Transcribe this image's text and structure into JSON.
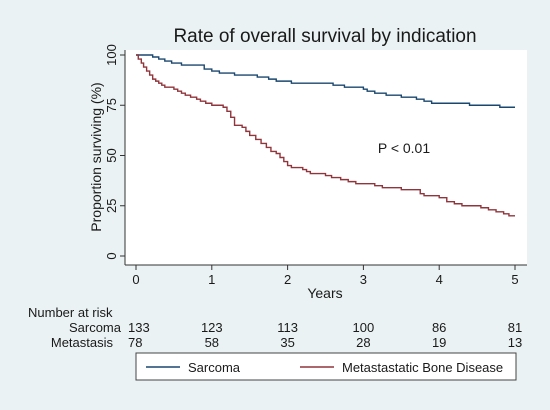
{
  "chart_data": {
    "type": "line",
    "step": true,
    "title": "Rate of overall survival by indication",
    "xlabel": "Years",
    "ylabel": "Proportion surviving (%)",
    "xlim": [
      0,
      5
    ],
    "ylim": [
      0,
      100
    ],
    "x_ticks": [
      0,
      1,
      2,
      3,
      4,
      5
    ],
    "y_ticks": [
      0,
      25,
      50,
      75,
      100
    ],
    "grid": false,
    "legend_position": "bottom",
    "annotation": "P < 0.01",
    "series": [
      {
        "name": "Sarcoma",
        "color": "#1a476f",
        "points": [
          [
            0,
            100
          ],
          [
            0.22,
            99
          ],
          [
            0.3,
            98
          ],
          [
            0.38,
            97
          ],
          [
            0.47,
            96
          ],
          [
            0.6,
            95
          ],
          [
            0.9,
            93
          ],
          [
            1.0,
            92
          ],
          [
            1.1,
            91
          ],
          [
            1.3,
            90
          ],
          [
            1.6,
            89
          ],
          [
            1.75,
            88
          ],
          [
            1.85,
            87
          ],
          [
            2.05,
            86
          ],
          [
            2.6,
            85
          ],
          [
            2.75,
            84
          ],
          [
            3.0,
            83
          ],
          [
            3.05,
            82
          ],
          [
            3.15,
            81
          ],
          [
            3.3,
            80
          ],
          [
            3.5,
            79
          ],
          [
            3.7,
            78
          ],
          [
            3.8,
            77
          ],
          [
            3.9,
            76
          ],
          [
            4.4,
            75
          ],
          [
            4.8,
            74
          ],
          [
            5.0,
            74
          ]
        ]
      },
      {
        "name": "Metastatic Bone Disease",
        "color": "#90353b",
        "points": [
          [
            0,
            100
          ],
          [
            0.03,
            98
          ],
          [
            0.07,
            96
          ],
          [
            0.1,
            94
          ],
          [
            0.14,
            92
          ],
          [
            0.18,
            90
          ],
          [
            0.22,
            88
          ],
          [
            0.26,
            87
          ],
          [
            0.3,
            86
          ],
          [
            0.34,
            85
          ],
          [
            0.38,
            84
          ],
          [
            0.5,
            83
          ],
          [
            0.55,
            82
          ],
          [
            0.6,
            81
          ],
          [
            0.65,
            80
          ],
          [
            0.72,
            79
          ],
          [
            0.8,
            78
          ],
          [
            0.85,
            77
          ],
          [
            0.92,
            76
          ],
          [
            1.0,
            75
          ],
          [
            1.15,
            74
          ],
          [
            1.2,
            72
          ],
          [
            1.25,
            69
          ],
          [
            1.3,
            65
          ],
          [
            1.4,
            64
          ],
          [
            1.45,
            62
          ],
          [
            1.5,
            60
          ],
          [
            1.58,
            58
          ],
          [
            1.65,
            56
          ],
          [
            1.72,
            54
          ],
          [
            1.78,
            52
          ],
          [
            1.85,
            51
          ],
          [
            1.9,
            49
          ],
          [
            1.95,
            47
          ],
          [
            2.0,
            45
          ],
          [
            2.05,
            44
          ],
          [
            2.2,
            43
          ],
          [
            2.25,
            42
          ],
          [
            2.3,
            41
          ],
          [
            2.5,
            40
          ],
          [
            2.58,
            39
          ],
          [
            2.7,
            38
          ],
          [
            2.8,
            37
          ],
          [
            2.9,
            36
          ],
          [
            3.15,
            35
          ],
          [
            3.25,
            34
          ],
          [
            3.5,
            33
          ],
          [
            3.75,
            31
          ],
          [
            3.8,
            30
          ],
          [
            4.0,
            29
          ],
          [
            4.1,
            27
          ],
          [
            4.2,
            26
          ],
          [
            4.3,
            25
          ],
          [
            4.55,
            24
          ],
          [
            4.65,
            23
          ],
          [
            4.75,
            22
          ],
          [
            4.85,
            21
          ],
          [
            4.92,
            20
          ],
          [
            5.0,
            20
          ]
        ]
      }
    ],
    "risk_table": {
      "title": "Number at risk",
      "time_points": [
        0,
        1,
        2,
        3,
        4,
        5
      ],
      "rows": [
        {
          "label": "Sarcoma",
          "values": [
            133,
            123,
            113,
            100,
            86,
            81
          ]
        },
        {
          "label": "Metastasis",
          "values": [
            78,
            58,
            35,
            28,
            19,
            13
          ]
        }
      ]
    },
    "legend": [
      {
        "label": "Sarcoma",
        "color": "#1a476f"
      },
      {
        "label": "Metastastatic Bone Disease",
        "color": "#90353b"
      }
    ]
  }
}
